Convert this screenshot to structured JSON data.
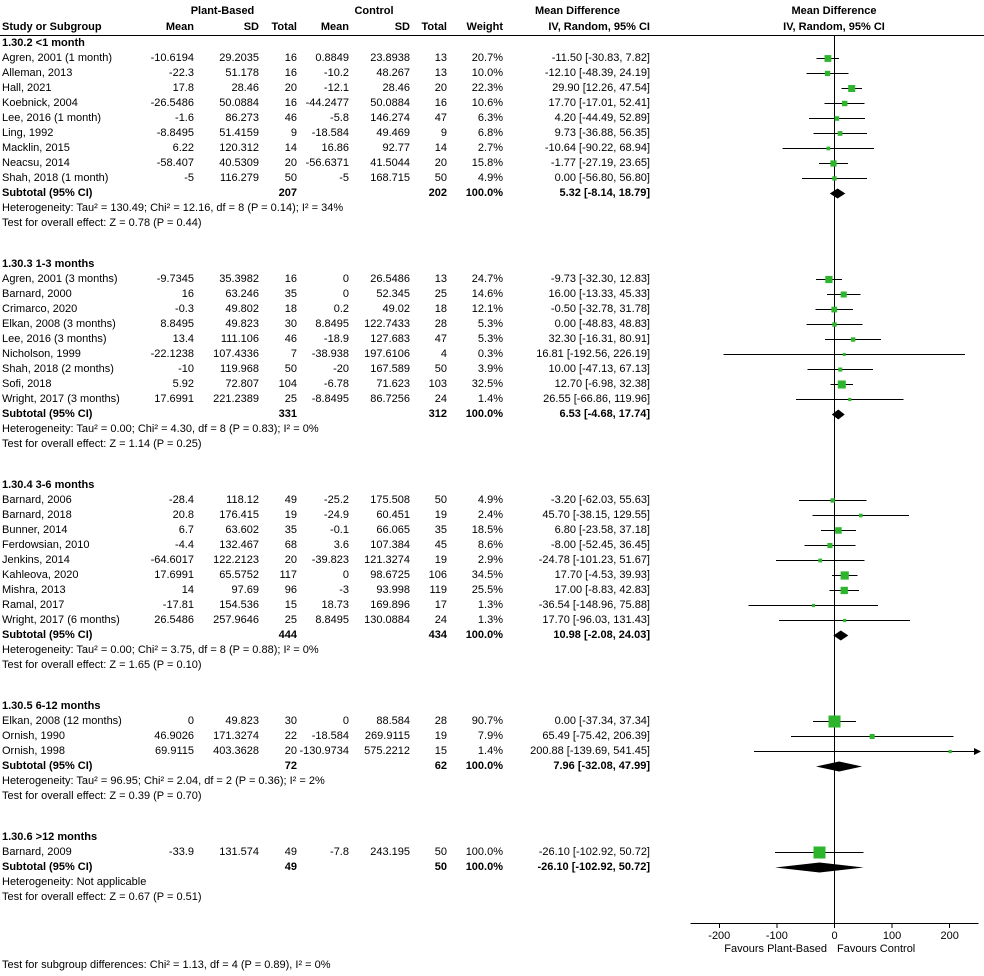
{
  "header": {
    "study": "Study or Subgroup",
    "plant_based": "Plant-Based",
    "control": "Control",
    "mean": "Mean",
    "sd": "SD",
    "total": "Total",
    "weight": "Weight",
    "mean_difference": "Mean Difference",
    "ci": "IV, Random, 95% CI"
  },
  "colors": {
    "marker": "#2DB52D",
    "diamond": "#000000",
    "line": "#000000"
  },
  "chart_data": {
    "type": "forest",
    "effect_measure": "Mean Difference",
    "model": "IV, Random, 95% CI",
    "x_axis": {
      "min": -250,
      "max": 250,
      "ticks": [
        -200,
        -100,
        0,
        100,
        200
      ],
      "left_label": "Favours Plant-Based",
      "right_label": "Favours Control"
    },
    "footer_note": "Test for subgroup differences: Chi² = 1.13, df = 4 (P = 0.89), I² = 0%",
    "subgroups": [
      {
        "title": "1.30.2 <1 month",
        "studies": [
          {
            "name": "Agren, 2001 (1 month)",
            "pb_mean": "-10.6194",
            "pb_sd": "29.2035",
            "pb_total": "16",
            "c_mean": "0.8849",
            "c_sd": "23.8938",
            "c_total": "13",
            "weight": "20.7%",
            "md": -11.5,
            "lo": -30.83,
            "hi": 7.82
          },
          {
            "name": "Alleman, 2013",
            "pb_mean": "-22.3",
            "pb_sd": "51.178",
            "pb_total": "16",
            "c_mean": "-10.2",
            "c_sd": "48.267",
            "c_total": "13",
            "weight": "10.0%",
            "md": -12.1,
            "lo": -48.39,
            "hi": 24.19
          },
          {
            "name": "Hall, 2021",
            "pb_mean": "17.8",
            "pb_sd": "28.46",
            "pb_total": "20",
            "c_mean": "-12.1",
            "c_sd": "28.46",
            "c_total": "20",
            "weight": "22.3%",
            "md": 29.9,
            "lo": 12.26,
            "hi": 47.54
          },
          {
            "name": "Koebnick, 2004",
            "pb_mean": "-26.5486",
            "pb_sd": "50.0884",
            "pb_total": "16",
            "c_mean": "-44.2477",
            "c_sd": "50.0884",
            "c_total": "16",
            "weight": "10.6%",
            "md": 17.7,
            "lo": -17.01,
            "hi": 52.41
          },
          {
            "name": "Lee, 2016 (1 month)",
            "pb_mean": "-1.6",
            "pb_sd": "86.273",
            "pb_total": "46",
            "c_mean": "-5.8",
            "c_sd": "146.274",
            "c_total": "47",
            "weight": "6.3%",
            "md": 4.2,
            "lo": -44.49,
            "hi": 52.89
          },
          {
            "name": "Ling, 1992",
            "pb_mean": "-8.8495",
            "pb_sd": "51.4159",
            "pb_total": "9",
            "c_mean": "-18.584",
            "c_sd": "49.469",
            "c_total": "9",
            "weight": "6.8%",
            "md": 9.73,
            "lo": -36.88,
            "hi": 56.35
          },
          {
            "name": "Macklin, 2015",
            "pb_mean": "6.22",
            "pb_sd": "120.312",
            "pb_total": "14",
            "c_mean": "16.86",
            "c_sd": "92.77",
            "c_total": "14",
            "weight": "2.7%",
            "md": -10.64,
            "lo": -90.22,
            "hi": 68.94
          },
          {
            "name": "Neacsu, 2014",
            "pb_mean": "-58.407",
            "pb_sd": "40.5309",
            "pb_total": "20",
            "c_mean": "-56.6371",
            "c_sd": "41.5044",
            "c_total": "20",
            "weight": "15.8%",
            "md": -1.77,
            "lo": -27.19,
            "hi": 23.65
          },
          {
            "name": "Shah, 2018 (1 month)",
            "pb_mean": "-5",
            "pb_sd": "116.279",
            "pb_total": "50",
            "c_mean": "-5",
            "c_sd": "168.715",
            "c_total": "50",
            "weight": "4.9%",
            "md": 0.0,
            "lo": -56.8,
            "hi": 56.8
          }
        ],
        "subtotal": {
          "label": "Subtotal (95% CI)",
          "pb_total": "207",
          "c_total": "202",
          "weight": "100.0%",
          "md": 5.32,
          "lo": -8.14,
          "hi": 18.79
        },
        "heterogeneity": "Heterogeneity: Tau² = 130.49; Chi² = 12.16, df = 8 (P = 0.14); I² = 34%",
        "overall_effect": "Test for overall effect: Z = 0.78 (P = 0.44)"
      },
      {
        "title": "1.30.3 1-3 months",
        "studies": [
          {
            "name": "Agren, 2001 (3 months)",
            "pb_mean": "-9.7345",
            "pb_sd": "35.3982",
            "pb_total": "16",
            "c_mean": "0",
            "c_sd": "26.5486",
            "c_total": "13",
            "weight": "24.7%",
            "md": -9.73,
            "lo": -32.3,
            "hi": 12.83
          },
          {
            "name": "Barnard, 2000",
            "pb_mean": "16",
            "pb_sd": "63.246",
            "pb_total": "35",
            "c_mean": "0",
            "c_sd": "52.345",
            "c_total": "25",
            "weight": "14.6%",
            "md": 16.0,
            "lo": -13.33,
            "hi": 45.33
          },
          {
            "name": "Crimarco, 2020",
            "pb_mean": "-0.3",
            "pb_sd": "49.802",
            "pb_total": "18",
            "c_mean": "0.2",
            "c_sd": "49.02",
            "c_total": "18",
            "weight": "12.1%",
            "md": -0.5,
            "lo": -32.78,
            "hi": 31.78
          },
          {
            "name": "Elkan, 2008 (3 months)",
            "pb_mean": "8.8495",
            "pb_sd": "49.823",
            "pb_total": "30",
            "c_mean": "8.8495",
            "c_sd": "122.7433",
            "c_total": "28",
            "weight": "5.3%",
            "md": 0.0,
            "lo": -48.83,
            "hi": 48.83
          },
          {
            "name": "Lee, 2016 (3 months)",
            "pb_mean": "13.4",
            "pb_sd": "111.106",
            "pb_total": "46",
            "c_mean": "-18.9",
            "c_sd": "127.683",
            "c_total": "47",
            "weight": "5.3%",
            "md": 32.3,
            "lo": -16.31,
            "hi": 80.91
          },
          {
            "name": "Nicholson, 1999",
            "pb_mean": "-22.1238",
            "pb_sd": "107.4336",
            "pb_total": "7",
            "c_mean": "-38.938",
            "c_sd": "197.6106",
            "c_total": "4",
            "weight": "0.3%",
            "md": 16.81,
            "lo": -192.56,
            "hi": 226.19
          },
          {
            "name": "Shah, 2018 (2 months)",
            "pb_mean": "-10",
            "pb_sd": "119.968",
            "pb_total": "50",
            "c_mean": "-20",
            "c_sd": "167.589",
            "c_total": "50",
            "weight": "3.9%",
            "md": 10.0,
            "lo": -47.13,
            "hi": 67.13
          },
          {
            "name": "Sofi, 2018",
            "pb_mean": "5.92",
            "pb_sd": "72.807",
            "pb_total": "104",
            "c_mean": "-6.78",
            "c_sd": "71.623",
            "c_total": "103",
            "weight": "32.5%",
            "md": 12.7,
            "lo": -6.98,
            "hi": 32.38
          },
          {
            "name": "Wright, 2017 (3 months)",
            "pb_mean": "17.6991",
            "pb_sd": "221.2389",
            "pb_total": "25",
            "c_mean": "-8.8495",
            "c_sd": "86.7256",
            "c_total": "24",
            "weight": "1.4%",
            "md": 26.55,
            "lo": -66.86,
            "hi": 119.96
          }
        ],
        "subtotal": {
          "label": "Subtotal (95% CI)",
          "pb_total": "331",
          "c_total": "312",
          "weight": "100.0%",
          "md": 6.53,
          "lo": -4.68,
          "hi": 17.74
        },
        "heterogeneity": "Heterogeneity: Tau² = 0.00; Chi² = 4.30, df = 8 (P = 0.83); I² = 0%",
        "overall_effect": "Test for overall effect: Z = 1.14 (P = 0.25)"
      },
      {
        "title": "1.30.4 3-6 months",
        "studies": [
          {
            "name": "Barnard, 2006",
            "pb_mean": "-28.4",
            "pb_sd": "118.12",
            "pb_total": "49",
            "c_mean": "-25.2",
            "c_sd": "175.508",
            "c_total": "50",
            "weight": "4.9%",
            "md": -3.2,
            "lo": -62.03,
            "hi": 55.63
          },
          {
            "name": "Barnard, 2018",
            "pb_mean": "20.8",
            "pb_sd": "176.415",
            "pb_total": "19",
            "c_mean": "-24.9",
            "c_sd": "60.451",
            "c_total": "19",
            "weight": "2.4%",
            "md": 45.7,
            "lo": -38.15,
            "hi": 129.55
          },
          {
            "name": "Bunner, 2014",
            "pb_mean": "6.7",
            "pb_sd": "63.602",
            "pb_total": "35",
            "c_mean": "-0.1",
            "c_sd": "66.065",
            "c_total": "35",
            "weight": "18.5%",
            "md": 6.8,
            "lo": -23.58,
            "hi": 37.18
          },
          {
            "name": "Ferdowsian, 2010",
            "pb_mean": "-4.4",
            "pb_sd": "132.467",
            "pb_total": "68",
            "c_mean": "3.6",
            "c_sd": "107.384",
            "c_total": "45",
            "weight": "8.6%",
            "md": -8.0,
            "lo": -52.45,
            "hi": 36.45
          },
          {
            "name": "Jenkins, 2014",
            "pb_mean": "-64.6017",
            "pb_sd": "122.2123",
            "pb_total": "20",
            "c_mean": "-39.823",
            "c_sd": "121.3274",
            "c_total": "19",
            "weight": "2.9%",
            "md": -24.78,
            "lo": -101.23,
            "hi": 51.67
          },
          {
            "name": "Kahleova, 2020",
            "pb_mean": "17.6991",
            "pb_sd": "65.5752",
            "pb_total": "117",
            "c_mean": "0",
            "c_sd": "98.6725",
            "c_total": "106",
            "weight": "34.5%",
            "md": 17.7,
            "lo": -4.53,
            "hi": 39.93
          },
          {
            "name": "Mishra, 2013",
            "pb_mean": "14",
            "pb_sd": "97.69",
            "pb_total": "96",
            "c_mean": "-3",
            "c_sd": "93.998",
            "c_total": "119",
            "weight": "25.5%",
            "md": 17.0,
            "lo": -8.83,
            "hi": 42.83
          },
          {
            "name": "Ramal, 2017",
            "pb_mean": "-17.81",
            "pb_sd": "154.536",
            "pb_total": "15",
            "c_mean": "18.73",
            "c_sd": "169.896",
            "c_total": "17",
            "weight": "1.3%",
            "md": -36.54,
            "lo": -148.96,
            "hi": 75.88
          },
          {
            "name": "Wright, 2017 (6 months)",
            "pb_mean": "26.5486",
            "pb_sd": "257.9646",
            "pb_total": "25",
            "c_mean": "8.8495",
            "c_sd": "130.0884",
            "c_total": "24",
            "weight": "1.3%",
            "md": 17.7,
            "lo": -96.03,
            "hi": 131.43
          }
        ],
        "subtotal": {
          "label": "Subtotal (95% CI)",
          "pb_total": "444",
          "c_total": "434",
          "weight": "100.0%",
          "md": 10.98,
          "lo": -2.08,
          "hi": 24.03
        },
        "heterogeneity": "Heterogeneity: Tau² = 0.00; Chi² = 3.75, df = 8 (P = 0.88); I² = 0%",
        "overall_effect": "Test for overall effect: Z = 1.65 (P = 0.10)"
      },
      {
        "title": "1.30.5 6-12 months",
        "studies": [
          {
            "name": "Elkan, 2008 (12 months)",
            "pb_mean": "0",
            "pb_sd": "49.823",
            "pb_total": "30",
            "c_mean": "0",
            "c_sd": "88.584",
            "c_total": "28",
            "weight": "90.7%",
            "md": 0.0,
            "lo": -37.34,
            "hi": 37.34
          },
          {
            "name": "Ornish, 1990",
            "pb_mean": "46.9026",
            "pb_sd": "171.3274",
            "pb_total": "22",
            "c_mean": "-18.584",
            "c_sd": "269.9115",
            "c_total": "19",
            "weight": "7.9%",
            "md": 65.49,
            "lo": -75.42,
            "hi": 206.39
          },
          {
            "name": "Ornish, 1998",
            "pb_mean": "69.9115",
            "pb_sd": "403.3628",
            "pb_total": "20",
            "c_mean": "-130.9734",
            "c_sd": "575.2212",
            "c_total": "15",
            "weight": "1.4%",
            "md": 200.88,
            "lo": -139.69,
            "hi": 541.45
          }
        ],
        "subtotal": {
          "label": "Subtotal (95% CI)",
          "pb_total": "72",
          "c_total": "62",
          "weight": "100.0%",
          "md": 7.96,
          "lo": -32.08,
          "hi": 47.99
        },
        "heterogeneity": "Heterogeneity: Tau² = 96.95; Chi² = 2.04, df = 2 (P = 0.36); I² = 2%",
        "overall_effect": "Test for overall effect: Z = 0.39 (P = 0.70)"
      },
      {
        "title": "1.30.6 >12 months",
        "studies": [
          {
            "name": "Barnard, 2009",
            "pb_mean": "-33.9",
            "pb_sd": "131.574",
            "pb_total": "49",
            "c_mean": "-7.8",
            "c_sd": "243.195",
            "c_total": "50",
            "weight": "100.0%",
            "md": -26.1,
            "lo": -102.92,
            "hi": 50.72
          }
        ],
        "subtotal": {
          "label": "Subtotal (95% CI)",
          "pb_total": "49",
          "c_total": "50",
          "weight": "100.0%",
          "md": -26.1,
          "lo": -102.92,
          "hi": 50.72
        },
        "heterogeneity": "Heterogeneity: Not applicable",
        "overall_effect": "Test for overall effect: Z = 0.67 (P = 0.51)"
      }
    ]
  }
}
